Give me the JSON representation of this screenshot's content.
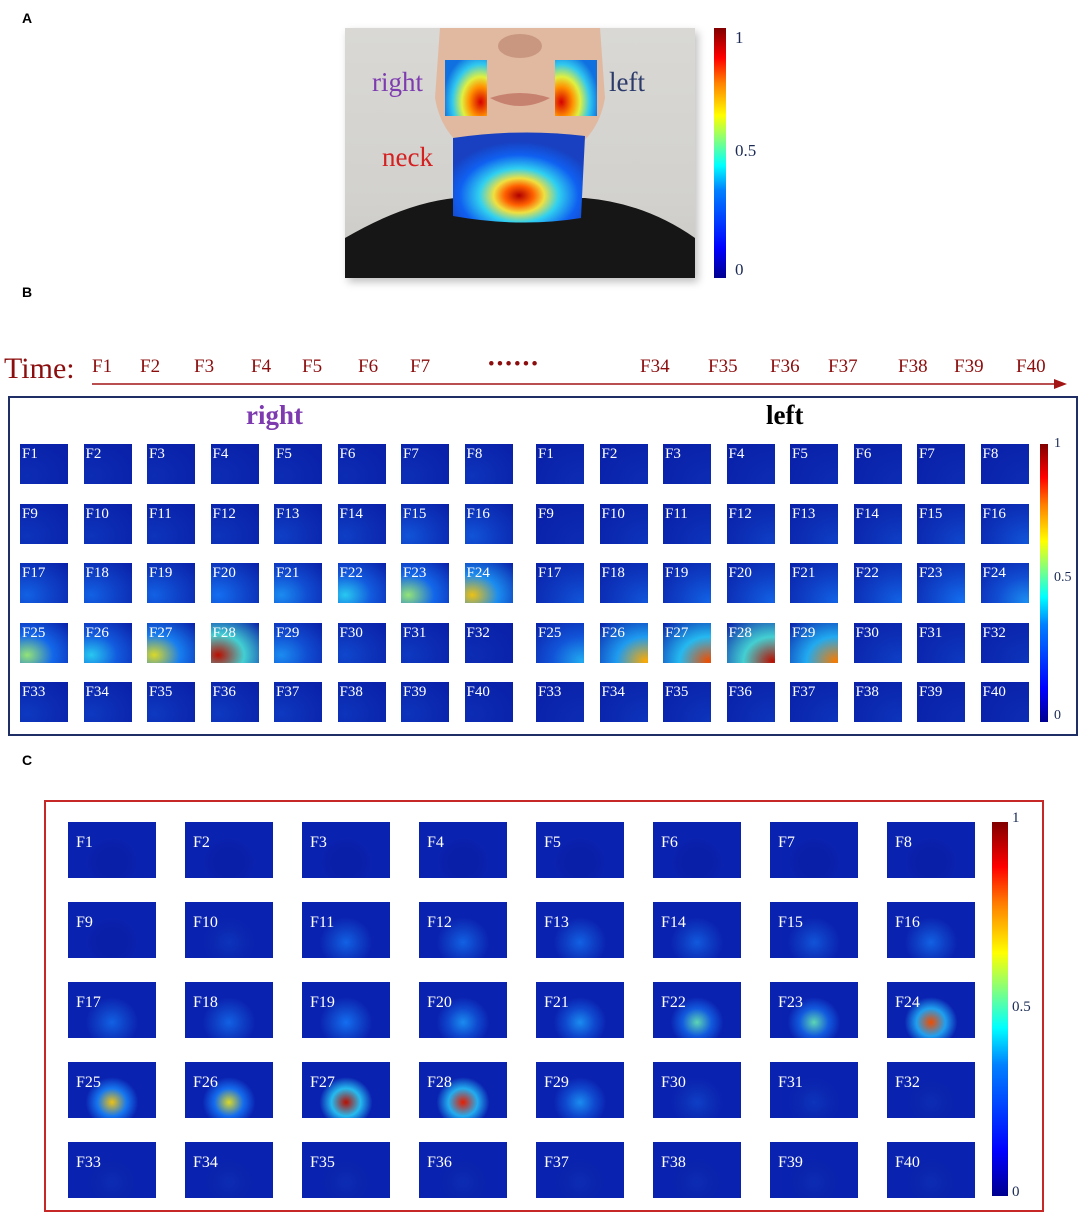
{
  "panel_a": {
    "letter": "A",
    "labels": {
      "right": "right",
      "left": "left",
      "neck": "neck"
    },
    "colors": {
      "right": "#7e3bb0",
      "left": "#2b3a6b",
      "neck": "#d42020"
    },
    "colorbar_ticks": [
      "1",
      "0.5",
      "0"
    ]
  },
  "panel_b": {
    "letter": "B",
    "time_label": "Time:",
    "time_frames": [
      "F1",
      "F2",
      "F3",
      "F4",
      "F5",
      "F6",
      "F7",
      "F34",
      "F35",
      "F36",
      "F37",
      "F38",
      "F39",
      "F40"
    ],
    "ellipsis": "••••••",
    "right_title": "right",
    "left_title": "left",
    "colorbar_ticks": [
      "1",
      "0.5",
      "0"
    ],
    "right_intensity": [
      0.05,
      0.05,
      0.05,
      0.05,
      0.05,
      0.05,
      0.06,
      0.08,
      0.08,
      0.08,
      0.08,
      0.08,
      0.12,
      0.12,
      0.2,
      0.2,
      0.25,
      0.25,
      0.25,
      0.3,
      0.35,
      0.45,
      0.55,
      0.7,
      0.55,
      0.45,
      0.65,
      0.95,
      0.35,
      0.15,
      0.1,
      0.05,
      0.1,
      0.1,
      0.1,
      0.1,
      0.1,
      0.08,
      0.08,
      0.05
    ],
    "left_intensity": [
      0.05,
      0.05,
      0.05,
      0.05,
      0.05,
      0.05,
      0.05,
      0.05,
      0.05,
      0.08,
      0.08,
      0.12,
      0.12,
      0.12,
      0.15,
      0.2,
      0.2,
      0.2,
      0.25,
      0.25,
      0.25,
      0.25,
      0.3,
      0.35,
      0.4,
      0.75,
      0.85,
      0.95,
      0.8,
      0.12,
      0.1,
      0.08,
      0.05,
      0.08,
      0.08,
      0.08,
      0.08,
      0.08,
      0.05,
      0.05
    ]
  },
  "panel_c": {
    "letter": "C",
    "colorbar_ticks": [
      "1",
      "0.5",
      "0"
    ],
    "intensity": [
      0.0,
      0.0,
      0.0,
      0.0,
      0.0,
      0.0,
      0.0,
      0.0,
      0.0,
      0.08,
      0.25,
      0.25,
      0.25,
      0.22,
      0.2,
      0.25,
      0.25,
      0.25,
      0.3,
      0.35,
      0.35,
      0.5,
      0.5,
      0.85,
      0.7,
      0.65,
      0.95,
      0.9,
      0.35,
      0.12,
      0.08,
      0.05,
      0.05,
      0.05,
      0.05,
      0.05,
      0.05,
      0.05,
      0.05,
      0.05
    ]
  }
}
